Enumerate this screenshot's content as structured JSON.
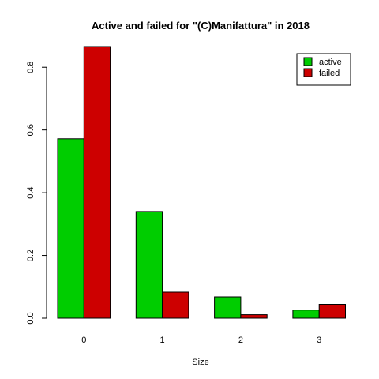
{
  "chart_data": {
    "type": "bar",
    "title": "Active and failed for \"(C)Manifattura\" in 2018",
    "xlabel": "Size",
    "ylabel": "",
    "categories": [
      "0",
      "1",
      "2",
      "3"
    ],
    "series": [
      {
        "name": "active",
        "color": "#00cd00",
        "values": [
          0.572,
          0.34,
          0.068,
          0.026
        ]
      },
      {
        "name": "failed",
        "color": "#cd0000",
        "values": [
          0.866,
          0.083,
          0.011,
          0.044
        ]
      }
    ],
    "ylim": [
      0,
      0.866
    ],
    "yticks": [
      "0.0",
      "0.2",
      "0.4",
      "0.6",
      "0.8"
    ],
    "legend_position": "top-right",
    "grid": false
  }
}
